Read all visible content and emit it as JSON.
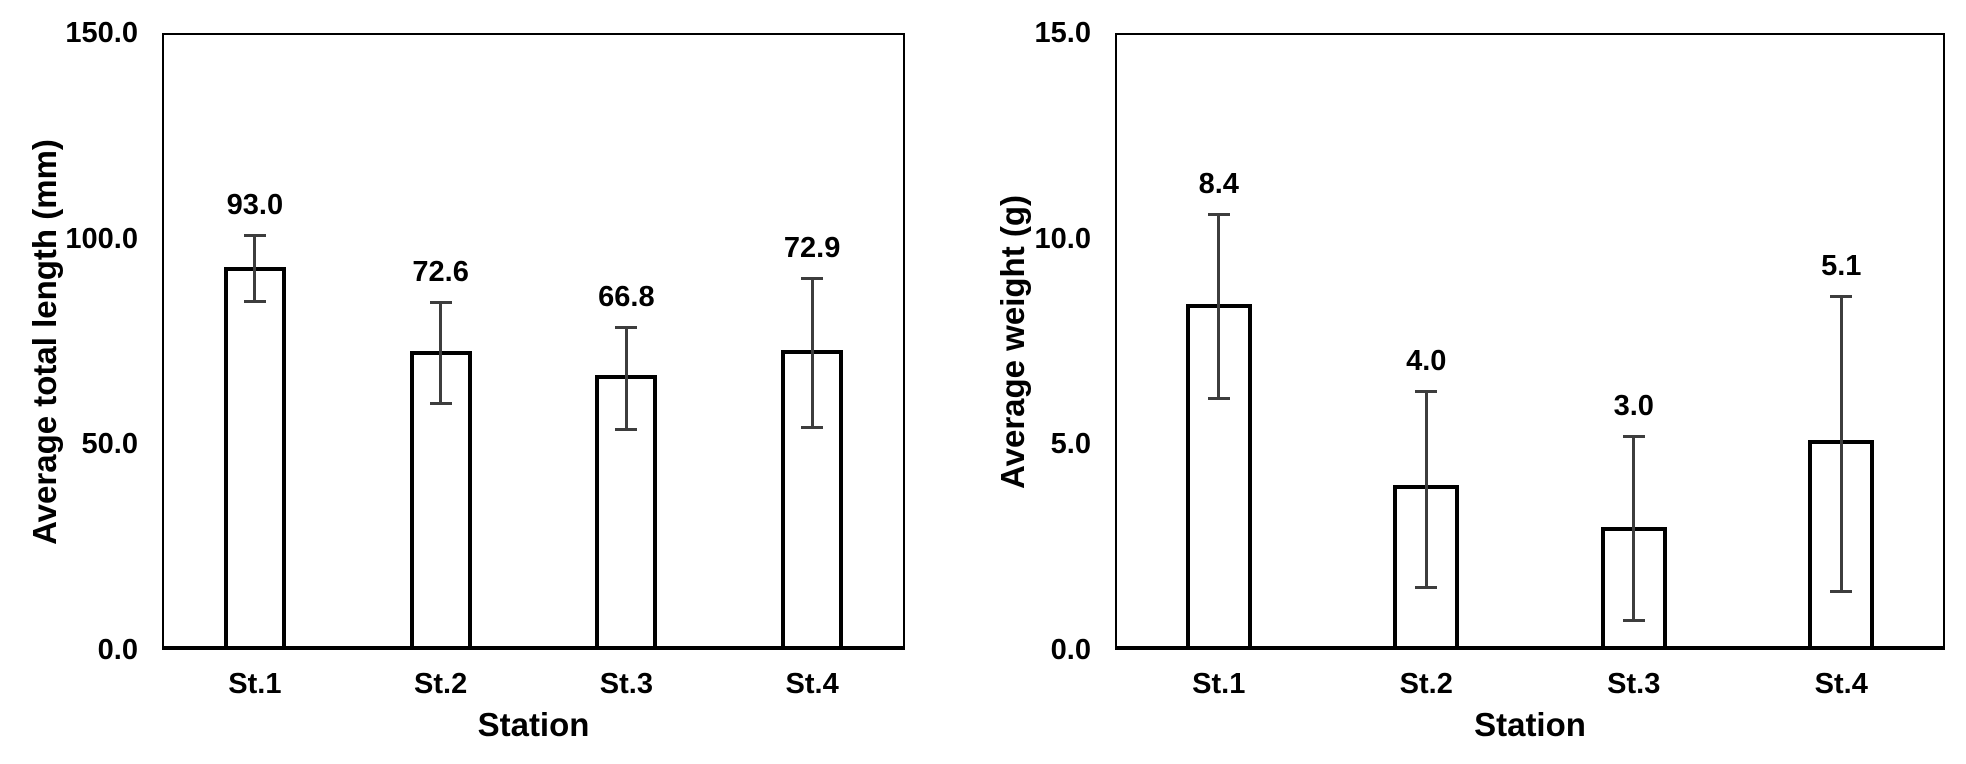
{
  "figure": {
    "background_color": "#ffffff",
    "text_color": "#000000"
  },
  "chart_data": [
    {
      "type": "bar",
      "title": "",
      "xlabel": "Station",
      "ylabel": "Average total length (mm)",
      "categories": [
        "St.1",
        "St.2",
        "St.3",
        "St.4"
      ],
      "values": [
        93.0,
        72.6,
        66.8,
        72.9
      ],
      "value_labels": [
        "93.0",
        "72.6",
        "66.8",
        "72.9"
      ],
      "errors_plus": [
        7.8,
        11.9,
        11.7,
        17.6
      ],
      "errors_minus": [
        8.3,
        12.9,
        13.2,
        18.9
      ],
      "ylim": [
        0,
        150
      ],
      "yticks": [
        0,
        50,
        100,
        150
      ],
      "ytick_labels": [
        "0.0",
        "50.0",
        "100.0",
        "150.0"
      ],
      "grid": false,
      "legend": "none",
      "bar_fill": "#ffffff",
      "bar_border": "#000000",
      "error_bar_color": "#3d3d3d"
    },
    {
      "type": "bar",
      "title": "",
      "xlabel": "Station",
      "ylabel": "Average weight (g)",
      "categories": [
        "St.1",
        "St.2",
        "St.3",
        "St.4"
      ],
      "values": [
        8.4,
        4.0,
        3.0,
        5.1
      ],
      "value_labels": [
        "8.4",
        "4.0",
        "3.0",
        "5.1"
      ],
      "errors_plus": [
        2.2,
        2.3,
        2.2,
        3.5
      ],
      "errors_minus": [
        2.3,
        2.5,
        2.3,
        3.7
      ],
      "ylim": [
        0,
        15
      ],
      "yticks": [
        0,
        5,
        10,
        15
      ],
      "ytick_labels": [
        "0.0",
        "5.0",
        "10.0",
        "15.0"
      ],
      "grid": false,
      "legend": "none",
      "bar_fill": "#ffffff",
      "bar_border": "#000000",
      "error_bar_color": "#3d3d3d"
    }
  ]
}
